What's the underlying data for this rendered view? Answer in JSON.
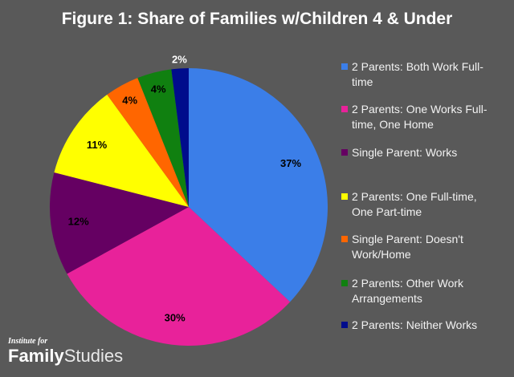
{
  "chart_data": {
    "type": "pie",
    "title": "Figure 1: Share of Families w/Children 4 & Under",
    "slices": [
      {
        "label": "2 Parents: Both Work Full-time",
        "legend_lines": [
          "2 Parents: Both Work Full-",
          "time"
        ],
        "value": 37,
        "data_label": "37%",
        "color": "#3b7ee8"
      },
      {
        "label": "2 Parents: One Works Full-time, One Home",
        "legend_lines": [
          "2 Parents: One Works Full-",
          "time, One Home"
        ],
        "value": 30,
        "data_label": "30%",
        "color": "#e8229a"
      },
      {
        "label": "Single Parent: Works",
        "legend_lines": [
          "Single Parent: Works"
        ],
        "value": 12,
        "data_label": "12%",
        "color": "#650062"
      },
      {
        "label": "2 Parents: One Full-time, One Part-time",
        "legend_lines": [
          "2 Parents: One Full-time,",
          "One Part-time"
        ],
        "value": 11,
        "data_label": "11%",
        "color": "#ffff00"
      },
      {
        "label": "Single Parent: Doesn't Work/Home",
        "legend_lines": [
          "Single Parent: Doesn't",
          "Work/Home"
        ],
        "value": 4,
        "data_label": "4%",
        "color": "#ff6600"
      },
      {
        "label": "2 Parents: Other Work Arrangements",
        "legend_lines": [
          "2 Parents: Other Work",
          "Arrangements"
        ],
        "value": 4,
        "data_label": "4%",
        "color": "#108010"
      },
      {
        "label": "2 Parents: Neither Works",
        "legend_lines": [
          "2 Parents: Neither Works"
        ],
        "value": 2,
        "data_label": "2%",
        "color": "#000c8c"
      }
    ],
    "legend_position": "right",
    "start": "top, clockwise"
  },
  "logo": {
    "small": "Institute for",
    "bold": "Family",
    "light": "Studies"
  }
}
